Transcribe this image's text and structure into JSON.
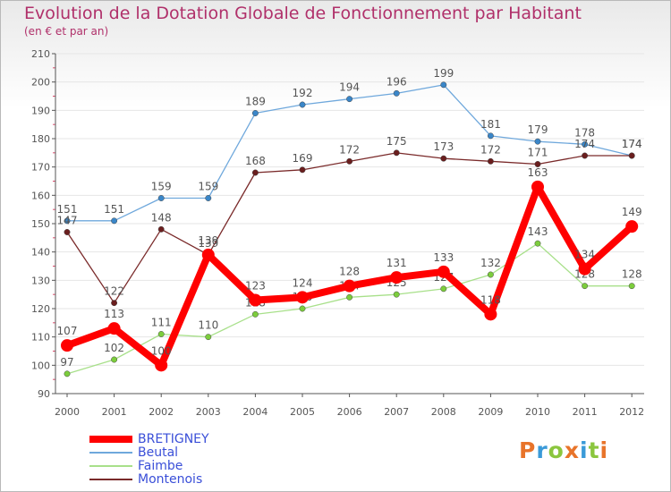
{
  "header": {
    "title": "Evolution de la Dotation Globale de Fonctionnement par Habitant",
    "subtitle": "(en € et par an)"
  },
  "logo": {
    "letters": [
      "P",
      "r",
      "o",
      "x",
      "i",
      "t",
      "i"
    ],
    "colors": [
      "#e8742a",
      "#3a9ad8",
      "#8bc63e",
      "#e8742a",
      "#3a9ad8",
      "#8bc63e",
      "#e8742a"
    ]
  },
  "colors": {
    "axis": "#555555",
    "grid": "#e6e6e6",
    "tick_minor": "#d84a6a",
    "label": "#555555"
  },
  "chart_data": {
    "type": "line",
    "title": "Evolution de la Dotation Globale de Fonctionnement par Habitant",
    "subtitle": "(en € et par an)",
    "xlabel": "",
    "ylabel": "",
    "categories": [
      "2000",
      "2001",
      "2002",
      "2003",
      "2004",
      "2005",
      "2006",
      "2007",
      "2008",
      "2009",
      "2010",
      "2011",
      "2012"
    ],
    "ylim": [
      90,
      210
    ],
    "yticks": [
      90,
      100,
      110,
      120,
      130,
      140,
      150,
      160,
      170,
      180,
      190,
      200,
      210
    ],
    "legend_position": "bottom-left",
    "series": [
      {
        "name": "Beutal",
        "color": "#6fa8dc",
        "marker": "#3a86c8",
        "values": [
          151,
          151,
          159,
          159,
          189,
          192,
          194,
          196,
          199,
          181,
          179,
          178,
          174
        ]
      },
      {
        "name": "Faimbe",
        "color": "#a8e08a",
        "marker": "#7ccd3c",
        "values": [
          97,
          102,
          111,
          110,
          118,
          120,
          124,
          125,
          127,
          132,
          143,
          128,
          128
        ]
      },
      {
        "name": "Montenois",
        "color": "#7a2a2a",
        "marker": "#6a1e1e",
        "values": [
          147,
          122,
          148,
          139,
          168,
          169,
          172,
          175,
          173,
          172,
          171,
          174,
          174
        ]
      },
      {
        "name": "BRETIGNEY",
        "color": "#ff0000",
        "marker": "#ff0000",
        "bold": true,
        "values": [
          107,
          113,
          100,
          139,
          123,
          124,
          128,
          131,
          133,
          118,
          163,
          134,
          149
        ]
      }
    ],
    "legend_order": [
      "BRETIGNEY",
      "Beutal",
      "Faimbe",
      "Montenois"
    ]
  }
}
